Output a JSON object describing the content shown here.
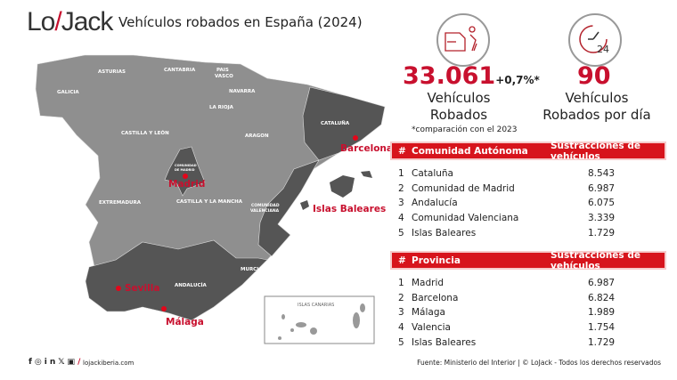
{
  "header": {
    "logo": "LoJack",
    "logo_parts": [
      "Lo",
      "/",
      "Jack"
    ],
    "title": "Vehículos robados en España (2024)"
  },
  "stats": [
    {
      "icon": "car-thief-icon",
      "value": "33.061",
      "change": "+0,7%*",
      "label_line1": "Vehículos",
      "label_line2": "Robados",
      "note": "*comparación con el 2023"
    },
    {
      "icon": "clock-24-icon",
      "value": "90",
      "label_line1": "Vehículos",
      "label_line2": "Robados por día"
    }
  ],
  "colors": {
    "accent": "#c8102e",
    "map_light": "#8c8c8c",
    "map_dark": "#555555"
  },
  "table_regions": {
    "headers": [
      "#",
      "Comunidad Autónoma",
      "Sustracciones de vehículos"
    ],
    "rows": [
      [
        "1",
        "Cataluña",
        "8.543"
      ],
      [
        "2",
        "Comunidad de Madrid",
        "6.987"
      ],
      [
        "3",
        "Andalucía",
        "6.075"
      ],
      [
        "4",
        "Comunidad Valenciana",
        "3.339"
      ],
      [
        "5",
        "Islas Baleares",
        "1.729"
      ]
    ]
  },
  "table_provinces": {
    "headers": [
      "#",
      "Provincia",
      "Sustracciones de vehículos"
    ],
    "rows": [
      [
        "1",
        "Madrid",
        "6.987"
      ],
      [
        "2",
        "Barcelona",
        "6.824"
      ],
      [
        "3",
        "Málaga",
        "1.989"
      ],
      [
        "4",
        "Valencia",
        "1.754"
      ],
      [
        "5",
        "Islas Baleares",
        "1.729"
      ]
    ]
  },
  "map": {
    "regions": [
      "ASTURIAS",
      "CANTABRIA",
      "PAIS",
      "VASCO",
      "NAVARRA",
      "GALICIA",
      "LA RIOJA",
      "CATALUÑA",
      "CASTILLA Y LEÓN",
      "ARAGON",
      "COMUNIDAD",
      "DE MADRID",
      "EXTREMADURA",
      "CASTILLA Y LA MANCHA",
      "COMUNIDAD",
      "VALENCIANA",
      "MURCIA",
      "ANDALUCÍA"
    ],
    "inset": "ISLAS CANARIAS",
    "cities": [
      "Barcelona",
      "Madrid",
      "Islas Baleares",
      "Sevilla",
      "Málaga"
    ]
  },
  "footer": {
    "social": [
      "facebook-icon",
      "instagram-icon",
      "linkedin-icon",
      "x-icon",
      "youtube-icon"
    ],
    "website": "lojackiberia.com",
    "source": "Fuente: Ministerio del Interior | © LoJack - Todos los derechos reservados"
  }
}
